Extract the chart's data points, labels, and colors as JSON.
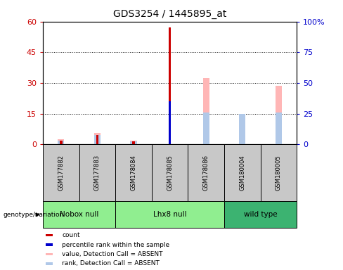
{
  "title": "GDS3254 / 1445895_at",
  "samples": [
    "GSM177882",
    "GSM177883",
    "GSM178084",
    "GSM178085",
    "GSM178086",
    "GSM180004",
    "GSM180005"
  ],
  "count_values": [
    2.0,
    4.5,
    1.5,
    57.0,
    0,
    0,
    0
  ],
  "percentile_rank_values": [
    0,
    0,
    0,
    21.0,
    0,
    0,
    0
  ],
  "value_absent": [
    2.5,
    5.5,
    2.0,
    0,
    32.5,
    15.0,
    28.5
  ],
  "rank_absent": [
    2.0,
    4.5,
    1.5,
    0,
    15.5,
    15.0,
    15.5
  ],
  "ylim_left": [
    0,
    60
  ],
  "ylim_right": [
    0,
    100
  ],
  "yticks_left": [
    0,
    15,
    30,
    45,
    60
  ],
  "ytick_labels_left": [
    "0",
    "15",
    "30",
    "45",
    "60"
  ],
  "yticks_right": [
    0,
    25,
    50,
    75,
    100
  ],
  "ytick_labels_right": [
    "0",
    "25",
    "50",
    "75",
    "100%"
  ],
  "count_color": "#CC0000",
  "rank_color": "#0000CC",
  "value_absent_color": "#FFB6B6",
  "rank_absent_color": "#B0C8E8",
  "sample_bg": "#C8C8C8",
  "nobox_color": "#90EE90",
  "lhx8_color": "#90EE90",
  "wild_color": "#3CB371",
  "label_fontsize": 8,
  "title_fontsize": 10,
  "group_spans": [
    {
      "name": "Nobox null",
      "start": 0,
      "end": 1,
      "color": "#90EE90"
    },
    {
      "name": "Lhx8 null",
      "start": 2,
      "end": 4,
      "color": "#90EE90"
    },
    {
      "name": "wild type",
      "start": 5,
      "end": 6,
      "color": "#3CB371"
    }
  ]
}
